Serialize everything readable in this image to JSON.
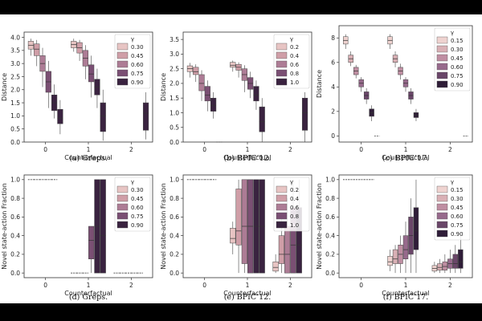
{
  "chart_data": [
    {
      "type": "box",
      "caption": "(a) Greps.",
      "ylabel": "Distance",
      "xlabel": "Counterfactual",
      "categories": [
        "0",
        "1",
        "2"
      ],
      "ylim": [
        0,
        4.2
      ],
      "yticks": [
        "0.0",
        "0.5",
        "1.0",
        "1.5",
        "2.0",
        "2.5",
        "3.0",
        "3.5",
        "4.0"
      ],
      "legend": {
        "title": "γ",
        "entries": [
          "0.30",
          "0.45",
          "0.60",
          "0.75",
          "0.90"
        ],
        "position": "upper-right"
      },
      "boxes": [
        {
          "cat": 0,
          "s": 0,
          "q1": 3.55,
          "med": 3.7,
          "q3": 3.85,
          "lo": 3.3,
          "hi": 3.95
        },
        {
          "cat": 0,
          "s": 1,
          "q1": 3.3,
          "med": 3.55,
          "q3": 3.75,
          "lo": 2.9,
          "hi": 3.9
        },
        {
          "cat": 0,
          "s": 2,
          "q1": 2.7,
          "med": 3.0,
          "q3": 3.3,
          "lo": 2.1,
          "hi": 3.6
        },
        {
          "cat": 0,
          "s": 3,
          "q1": 1.9,
          "med": 2.3,
          "q3": 2.7,
          "lo": 1.3,
          "hi": 3.1
        },
        {
          "cat": 0,
          "s": 4,
          "q1": 1.2,
          "med": 1.5,
          "q3": 1.8,
          "lo": 0.9,
          "hi": 2.2
        },
        {
          "cat": 0,
          "s": 5,
          "q1": 0.7,
          "med": 0.9,
          "q3": 1.25,
          "lo": 0.3,
          "hi": 1.6
        },
        {
          "cat": 1,
          "s": 0,
          "q1": 3.6,
          "med": 3.72,
          "q3": 3.85,
          "lo": 3.45,
          "hi": 3.95
        },
        {
          "cat": 1,
          "s": 1,
          "q1": 3.4,
          "med": 3.6,
          "q3": 3.8,
          "lo": 3.1,
          "hi": 3.9
        },
        {
          "cat": 1,
          "s": 2,
          "q1": 2.9,
          "med": 3.2,
          "q3": 3.5,
          "lo": 2.4,
          "hi": 3.7
        },
        {
          "cat": 1,
          "s": 3,
          "q1": 2.3,
          "med": 2.6,
          "q3": 2.95,
          "lo": 1.7,
          "hi": 3.3
        },
        {
          "cat": 1,
          "s": 4,
          "q1": 1.8,
          "med": 2.1,
          "q3": 2.4,
          "lo": 1.3,
          "hi": 2.8
        },
        {
          "cat": 1,
          "s": 5,
          "q1": 0.4,
          "med": 1.0,
          "q3": 1.5,
          "lo": 0.05,
          "hi": 2.0
        },
        {
          "cat": 2,
          "s": 5,
          "q1": 0.45,
          "med": 1.1,
          "q3": 1.5,
          "lo": 0.1,
          "hi": 1.9
        }
      ]
    },
    {
      "type": "box",
      "caption": "(b) BPIC’12.",
      "ylabel": "Distance",
      "xlabel": "Counterfactual",
      "categories": [
        "0",
        "1",
        "2"
      ],
      "ylim": [
        0,
        3.75
      ],
      "yticks": [
        "0.0",
        "0.5",
        "1.0",
        "1.5",
        "2.0",
        "2.5",
        "3.0",
        "3.5"
      ],
      "legend": {
        "title": "γ",
        "entries": [
          "0.2",
          "0.4",
          "0.6",
          "0.8",
          "1.0"
        ],
        "position": "upper-right"
      },
      "boxes": [
        {
          "cat": 0,
          "s": 0,
          "q1": 2.4,
          "med": 2.5,
          "q3": 2.6,
          "lo": 2.2,
          "hi": 2.7
        },
        {
          "cat": 0,
          "s": 1,
          "q1": 2.3,
          "med": 2.4,
          "q3": 2.55,
          "lo": 2.05,
          "hi": 2.65
        },
        {
          "cat": 0,
          "s": 2,
          "q1": 1.75,
          "med": 2.0,
          "q3": 2.3,
          "lo": 1.4,
          "hi": 2.45
        },
        {
          "cat": 0,
          "s": 3,
          "q1": 1.4,
          "med": 1.6,
          "q3": 1.9,
          "lo": 1.05,
          "hi": 2.1
        },
        {
          "cat": 0,
          "s": 4,
          "q1": 1.05,
          "med": 1.25,
          "q3": 1.5,
          "lo": 0.8,
          "hi": 1.7
        },
        {
          "cat": 0,
          "s": 5,
          "q1": 0.0,
          "med": 0.0,
          "q3": 0.0,
          "lo": 0.0,
          "hi": 0.0
        },
        {
          "cat": 1,
          "s": 0,
          "q1": 2.55,
          "med": 2.62,
          "q3": 2.72,
          "lo": 2.4,
          "hi": 2.78
        },
        {
          "cat": 1,
          "s": 1,
          "q1": 2.45,
          "med": 2.55,
          "q3": 2.65,
          "lo": 2.2,
          "hi": 2.72
        },
        {
          "cat": 1,
          "s": 2,
          "q1": 2.1,
          "med": 2.3,
          "q3": 2.5,
          "lo": 1.7,
          "hi": 2.62
        },
        {
          "cat": 1,
          "s": 3,
          "q1": 1.8,
          "med": 2.0,
          "q3": 2.2,
          "lo": 1.5,
          "hi": 2.4
        },
        {
          "cat": 1,
          "s": 4,
          "q1": 1.4,
          "med": 1.6,
          "q3": 1.9,
          "lo": 1.1,
          "hi": 2.1
        },
        {
          "cat": 1,
          "s": 5,
          "q1": 0.35,
          "med": 0.7,
          "q3": 1.2,
          "lo": 0.0,
          "hi": 1.5
        },
        {
          "cat": 2,
          "s": 5,
          "q1": 0.4,
          "med": 1.0,
          "q3": 1.5,
          "lo": 0.0,
          "hi": 1.7
        }
      ]
    },
    {
      "type": "box",
      "caption": "(c) BPIC’17.",
      "ylabel": "Distance",
      "xlabel": "Counterfactual",
      "categories": [
        "0",
        "1",
        "2"
      ],
      "ylim": [
        -0.5,
        9
      ],
      "yticks": [
        "0",
        "2",
        "4",
        "6",
        "8"
      ],
      "legend": {
        "title": "γ",
        "entries": [
          "0.15",
          "0.30",
          "0.45",
          "0.60",
          "0.75",
          "0.90"
        ],
        "position": "upper-right"
      },
      "boxes": [
        {
          "cat": 0,
          "s": 0,
          "q1": 7.5,
          "med": 7.8,
          "q3": 8.1,
          "lo": 7.1,
          "hi": 8.3
        },
        {
          "cat": 0,
          "s": 1,
          "q1": 6.0,
          "med": 6.3,
          "q3": 6.6,
          "lo": 5.7,
          "hi": 6.9
        },
        {
          "cat": 0,
          "s": 2,
          "q1": 5.0,
          "med": 5.3,
          "q3": 5.6,
          "lo": 4.7,
          "hi": 5.8
        },
        {
          "cat": 0,
          "s": 3,
          "q1": 4.0,
          "med": 4.3,
          "q3": 4.6,
          "lo": 3.6,
          "hi": 4.8
        },
        {
          "cat": 0,
          "s": 4,
          "q1": 3.0,
          "med": 3.3,
          "q3": 3.6,
          "lo": 2.6,
          "hi": 3.9
        },
        {
          "cat": 0,
          "s": 5,
          "q1": 1.6,
          "med": 1.9,
          "q3": 2.2,
          "lo": 1.2,
          "hi": 2.5
        },
        {
          "cat": 0,
          "s": 6,
          "q1": 0.0,
          "med": 0.0,
          "q3": 0.0,
          "lo": 0.0,
          "hi": 0.0
        },
        {
          "cat": 1,
          "s": 0,
          "q1": 7.5,
          "med": 7.8,
          "q3": 8.1,
          "lo": 7.1,
          "hi": 8.3
        },
        {
          "cat": 1,
          "s": 1,
          "q1": 6.0,
          "med": 6.3,
          "q3": 6.6,
          "lo": 5.6,
          "hi": 6.9
        },
        {
          "cat": 1,
          "s": 2,
          "q1": 5.0,
          "med": 5.3,
          "q3": 5.6,
          "lo": 4.6,
          "hi": 5.9
        },
        {
          "cat": 1,
          "s": 3,
          "q1": 4.0,
          "med": 4.3,
          "q3": 4.6,
          "lo": 3.6,
          "hi": 4.8
        },
        {
          "cat": 1,
          "s": 4,
          "q1": 3.0,
          "med": 3.3,
          "q3": 3.6,
          "lo": 2.6,
          "hi": 3.9
        },
        {
          "cat": 1,
          "s": 5,
          "q1": 1.5,
          "med": 1.7,
          "q3": 1.9,
          "lo": 1.2,
          "hi": 2.2
        },
        {
          "cat": 2,
          "s": 6,
          "q1": 0.0,
          "med": 0.0,
          "q3": 0.0,
          "lo": 0.0,
          "hi": 0.0
        }
      ]
    },
    {
      "type": "box",
      "caption": "(d) Greps.",
      "ylabel": "Novel state-action Fraction",
      "xlabel": "Counterfactual",
      "categories": [
        "0",
        "1",
        "2"
      ],
      "ylim": [
        -0.05,
        1.05
      ],
      "yticks": [
        "0.0",
        "0.2",
        "0.4",
        "0.6",
        "0.8",
        "1.0"
      ],
      "legend": {
        "title": "γ",
        "entries": [
          "0.30",
          "0.45",
          "0.60",
          "0.75",
          "0.90"
        ],
        "position": "upper-right"
      },
      "boxes": [
        {
          "cat": 0,
          "s": 0,
          "q1": 1.0,
          "med": 1.0,
          "q3": 1.0,
          "lo": 1.0,
          "hi": 1.0
        },
        {
          "cat": 0,
          "s": 1,
          "q1": 1.0,
          "med": 1.0,
          "q3": 1.0,
          "lo": 1.0,
          "hi": 1.0
        },
        {
          "cat": 0,
          "s": 2,
          "q1": 1.0,
          "med": 1.0,
          "q3": 1.0,
          "lo": 1.0,
          "hi": 1.0
        },
        {
          "cat": 0,
          "s": 3,
          "q1": 1.0,
          "med": 1.0,
          "q3": 1.0,
          "lo": 1.0,
          "hi": 1.0
        },
        {
          "cat": 0,
          "s": 4,
          "q1": 1.0,
          "med": 1.0,
          "q3": 1.0,
          "lo": 1.0,
          "hi": 1.0
        },
        {
          "cat": 1,
          "s": 0,
          "q1": 0.0,
          "med": 0.0,
          "q3": 0.0,
          "lo": 0.0,
          "hi": 0.0
        },
        {
          "cat": 1,
          "s": 1,
          "q1": 0.0,
          "med": 0.0,
          "q3": 0.0,
          "lo": 0.0,
          "hi": 0.0
        },
        {
          "cat": 1,
          "s": 2,
          "q1": 0.0,
          "med": 0.0,
          "q3": 0.0,
          "lo": 0.0,
          "hi": 0.0
        },
        {
          "cat": 1,
          "s": 3,
          "q1": 0.15,
          "med": 0.35,
          "q3": 0.5,
          "lo": 0.0,
          "hi": 0.5
        },
        {
          "cat": 1,
          "s": 4,
          "q1": 0.0,
          "med": 0.5,
          "q3": 1.0,
          "lo": 0.0,
          "hi": 1.0
        },
        {
          "cat": 1,
          "s": 5,
          "q1": 0.0,
          "med": 0.4,
          "q3": 1.0,
          "lo": 0.0,
          "hi": 1.0
        },
        {
          "cat": 2,
          "s": 0,
          "q1": 0.0,
          "med": 0.0,
          "q3": 0.0,
          "lo": 0.0,
          "hi": 0.0
        },
        {
          "cat": 2,
          "s": 1,
          "q1": 0.0,
          "med": 0.0,
          "q3": 0.0,
          "lo": 0.0,
          "hi": 0.0
        },
        {
          "cat": 2,
          "s": 2,
          "q1": 0.0,
          "med": 0.0,
          "q3": 0.0,
          "lo": 0.0,
          "hi": 0.0
        },
        {
          "cat": 2,
          "s": 3,
          "q1": 0.0,
          "med": 0.0,
          "q3": 0.0,
          "lo": 0.0,
          "hi": 0.0
        },
        {
          "cat": 2,
          "s": 4,
          "q1": 0.0,
          "med": 0.0,
          "q3": 0.0,
          "lo": 0.0,
          "hi": 0.0
        }
      ]
    },
    {
      "type": "box",
      "caption": "(e) BPIC’12.",
      "ylabel": "Novel state-action Fraction",
      "xlabel": "Counterfactual",
      "categories": [
        "0",
        "1",
        "2"
      ],
      "ylim": [
        -0.05,
        1.05
      ],
      "yticks": [
        "0.0",
        "0.2",
        "0.4",
        "0.6",
        "0.8",
        "1.0"
      ],
      "legend": {
        "title": "γ",
        "entries": [
          "0.2",
          "0.4",
          "0.6",
          "0.8",
          "1.0"
        ],
        "position": "upper-right"
      },
      "boxes": [
        {
          "cat": 0,
          "s": 0,
          "q1": 1.0,
          "med": 1.0,
          "q3": 1.0,
          "lo": 1.0,
          "hi": 1.0
        },
        {
          "cat": 0,
          "s": 1,
          "q1": 1.0,
          "med": 1.0,
          "q3": 1.0,
          "lo": 1.0,
          "hi": 1.0
        },
        {
          "cat": 0,
          "s": 2,
          "q1": 1.0,
          "med": 1.0,
          "q3": 1.0,
          "lo": 1.0,
          "hi": 1.0
        },
        {
          "cat": 0,
          "s": 3,
          "q1": 1.0,
          "med": 1.0,
          "q3": 1.0,
          "lo": 1.0,
          "hi": 1.0
        },
        {
          "cat": 0,
          "s": 4,
          "q1": 1.0,
          "med": 1.0,
          "q3": 1.0,
          "lo": 1.0,
          "hi": 1.0
        },
        {
          "cat": 1,
          "s": 0,
          "q1": 0.32,
          "med": 0.37,
          "q3": 0.48,
          "lo": 0.2,
          "hi": 0.55
        },
        {
          "cat": 1,
          "s": 1,
          "q1": 0.3,
          "med": 0.45,
          "q3": 0.9,
          "lo": 0.0,
          "hi": 1.0
        },
        {
          "cat": 1,
          "s": 2,
          "q1": 0.1,
          "med": 0.5,
          "q3": 1.0,
          "lo": 0.0,
          "hi": 1.0
        },
        {
          "cat": 1,
          "s": 3,
          "q1": 0.0,
          "med": 0.5,
          "q3": 1.0,
          "lo": 0.0,
          "hi": 1.0
        },
        {
          "cat": 1,
          "s": 4,
          "q1": 0.0,
          "med": 0.5,
          "q3": 1.0,
          "lo": 0.0,
          "hi": 1.0
        },
        {
          "cat": 1,
          "s": 5,
          "q1": 0.0,
          "med": 0.5,
          "q3": 1.0,
          "lo": 0.0,
          "hi": 1.0
        },
        {
          "cat": 2,
          "s": 0,
          "q1": 0.02,
          "med": 0.06,
          "q3": 0.12,
          "lo": 0.0,
          "hi": 0.2
        },
        {
          "cat": 2,
          "s": 1,
          "q1": 0.1,
          "med": 0.2,
          "q3": 0.4,
          "lo": 0.0,
          "hi": 0.6
        },
        {
          "cat": 2,
          "s": 2,
          "q1": 0.0,
          "med": 0.2,
          "q3": 0.5,
          "lo": 0.0,
          "hi": 0.8
        },
        {
          "cat": 2,
          "s": 3,
          "q1": 0.0,
          "med": 0.3,
          "q3": 0.7,
          "lo": 0.0,
          "hi": 1.0
        },
        {
          "cat": 2,
          "s": 4,
          "q1": 0.0,
          "med": 0.3,
          "q3": 0.7,
          "lo": 0.0,
          "hi": 1.0
        }
      ]
    },
    {
      "type": "box",
      "caption": "(f) BPIC’17.",
      "ylabel": "Novel state-action Fraction",
      "xlabel": "Counterfactual",
      "categories": [
        "0",
        "1",
        "2"
      ],
      "ylim": [
        -0.05,
        1.05
      ],
      "yticks": [
        "0.0",
        "0.2",
        "0.4",
        "0.6",
        "0.8",
        "1.0"
      ],
      "legend": {
        "title": "γ",
        "entries": [
          "0.15",
          "0.30",
          "0.45",
          "0.60",
          "0.75",
          "0.90"
        ],
        "position": "upper-right"
      },
      "boxes": [
        {
          "cat": 0,
          "s": 0,
          "q1": 1.0,
          "med": 1.0,
          "q3": 1.0,
          "lo": 1.0,
          "hi": 1.0
        },
        {
          "cat": 0,
          "s": 1,
          "q1": 1.0,
          "med": 1.0,
          "q3": 1.0,
          "lo": 1.0,
          "hi": 1.0
        },
        {
          "cat": 0,
          "s": 2,
          "q1": 1.0,
          "med": 1.0,
          "q3": 1.0,
          "lo": 1.0,
          "hi": 1.0
        },
        {
          "cat": 0,
          "s": 3,
          "q1": 1.0,
          "med": 1.0,
          "q3": 1.0,
          "lo": 1.0,
          "hi": 1.0
        },
        {
          "cat": 0,
          "s": 4,
          "q1": 1.0,
          "med": 1.0,
          "q3": 1.0,
          "lo": 1.0,
          "hi": 1.0
        },
        {
          "cat": 0,
          "s": 5,
          "q1": 1.0,
          "med": 1.0,
          "q3": 1.0,
          "lo": 1.0,
          "hi": 1.0
        },
        {
          "cat": 1,
          "s": 0,
          "q1": 0.08,
          "med": 0.12,
          "q3": 0.18,
          "lo": 0.02,
          "hi": 0.25
        },
        {
          "cat": 1,
          "s": 1,
          "q1": 0.1,
          "med": 0.15,
          "q3": 0.25,
          "lo": 0.0,
          "hi": 0.3
        },
        {
          "cat": 1,
          "s": 2,
          "q1": 0.1,
          "med": 0.2,
          "q3": 0.3,
          "lo": 0.0,
          "hi": 0.4
        },
        {
          "cat": 1,
          "s": 3,
          "q1": 0.15,
          "med": 0.25,
          "q3": 0.4,
          "lo": 0.0,
          "hi": 0.55
        },
        {
          "cat": 1,
          "s": 4,
          "q1": 0.2,
          "med": 0.4,
          "q3": 0.6,
          "lo": 0.0,
          "hi": 0.8
        },
        {
          "cat": 1,
          "s": 5,
          "q1": 0.25,
          "med": 0.45,
          "q3": 0.7,
          "lo": 0.0,
          "hi": 1.0
        },
        {
          "cat": 2,
          "s": 0,
          "q1": 0.02,
          "med": 0.05,
          "q3": 0.08,
          "lo": 0.0,
          "hi": 0.12
        },
        {
          "cat": 2,
          "s": 1,
          "q1": 0.03,
          "med": 0.06,
          "q3": 0.1,
          "lo": 0.0,
          "hi": 0.15
        },
        {
          "cat": 2,
          "s": 2,
          "q1": 0.03,
          "med": 0.07,
          "q3": 0.12,
          "lo": 0.0,
          "hi": 0.2
        },
        {
          "cat": 2,
          "s": 3,
          "q1": 0.05,
          "med": 0.1,
          "q3": 0.15,
          "lo": 0.0,
          "hi": 0.25
        },
        {
          "cat": 2,
          "s": 4,
          "q1": 0.05,
          "med": 0.1,
          "q3": 0.2,
          "lo": 0.0,
          "hi": 0.3
        },
        {
          "cat": 2,
          "s": 5,
          "q1": 0.05,
          "med": 0.12,
          "q3": 0.25,
          "lo": 0.0,
          "hi": 0.4
        }
      ]
    }
  ],
  "palette": {
    "5": [
      "#e7c4c3",
      "#cf9ea7",
      "#ad7c95",
      "#7a4f73",
      "#3a2340"
    ],
    "6": [
      "#efd3d0",
      "#d9b0b5",
      "#bf8ea2",
      "#976a8c",
      "#6a4669",
      "#2f1d38"
    ]
  }
}
